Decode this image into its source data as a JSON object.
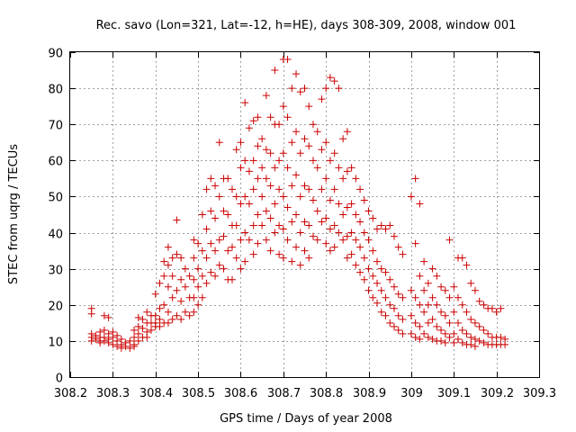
{
  "chart_data": {
    "type": "scatter",
    "title": "Rec. savo (Lon=321, Lat=-12, h=HE), days 308-309, 2008, window 001",
    "xlabel": "GPS time / Days of year 2008",
    "ylabel": "STEC from uqrg / TECUs",
    "xlim": [
      308.2,
      309.3
    ],
    "ylim": [
      0,
      90
    ],
    "xticks": [
      "308.2",
      "308.3",
      "308.4",
      "308.5",
      "308.6",
      "308.7",
      "308.8",
      "308.9",
      "309",
      "309.1",
      "309.2",
      "309.3"
    ],
    "yticks": [
      "0",
      "10",
      "20",
      "30",
      "40",
      "50",
      "60",
      "70",
      "80",
      "90"
    ],
    "grid": true,
    "marker": "plus",
    "color": "#cc0000",
    "points": [
      [
        308.25,
        19
      ],
      [
        308.25,
        17.5
      ],
      [
        308.25,
        12
      ],
      [
        308.25,
        11
      ],
      [
        308.25,
        10
      ],
      [
        308.26,
        11.5
      ],
      [
        308.26,
        10.5
      ],
      [
        308.27,
        12.5
      ],
      [
        308.27,
        11
      ],
      [
        308.27,
        10
      ],
      [
        308.27,
        9.5
      ],
      [
        308.28,
        17
      ],
      [
        308.28,
        13
      ],
      [
        308.28,
        11
      ],
      [
        308.28,
        10
      ],
      [
        308.29,
        16.5
      ],
      [
        308.29,
        12
      ],
      [
        308.29,
        10.5
      ],
      [
        308.29,
        9.5
      ],
      [
        308.3,
        12.5
      ],
      [
        308.3,
        11
      ],
      [
        308.3,
        9
      ],
      [
        308.31,
        11.5
      ],
      [
        308.31,
        10
      ],
      [
        308.31,
        8.5
      ],
      [
        308.32,
        10.5
      ],
      [
        308.32,
        9
      ],
      [
        308.32,
        8
      ],
      [
        308.33,
        9.5
      ],
      [
        308.33,
        8.5
      ],
      [
        308.34,
        10
      ],
      [
        308.34,
        8
      ],
      [
        308.35,
        13
      ],
      [
        308.35,
        11
      ],
      [
        308.35,
        9
      ],
      [
        308.35,
        8.5
      ],
      [
        308.36,
        16.5
      ],
      [
        308.36,
        14
      ],
      [
        308.36,
        12
      ],
      [
        308.36,
        10
      ],
      [
        308.37,
        16
      ],
      [
        308.37,
        13.5
      ],
      [
        308.37,
        11
      ],
      [
        308.38,
        18
      ],
      [
        308.38,
        15
      ],
      [
        308.38,
        12.5
      ],
      [
        308.38,
        11
      ],
      [
        308.39,
        17
      ],
      [
        308.39,
        15
      ],
      [
        308.39,
        13
      ],
      [
        308.4,
        23
      ],
      [
        308.4,
        17
      ],
      [
        308.4,
        15
      ],
      [
        308.4,
        14
      ],
      [
        308.41,
        26
      ],
      [
        308.41,
        19
      ],
      [
        308.41,
        16
      ],
      [
        308.41,
        14
      ],
      [
        308.42,
        32
      ],
      [
        308.42,
        28
      ],
      [
        308.42,
        20
      ],
      [
        308.42,
        15
      ],
      [
        308.43,
        36
      ],
      [
        308.43,
        31
      ],
      [
        308.43,
        25
      ],
      [
        308.43,
        18
      ],
      [
        308.43,
        15
      ],
      [
        308.44,
        33
      ],
      [
        308.44,
        28
      ],
      [
        308.44,
        22
      ],
      [
        308.44,
        16
      ],
      [
        308.45,
        43.5
      ],
      [
        308.45,
        34
      ],
      [
        308.45,
        24
      ],
      [
        308.45,
        17
      ],
      [
        308.46,
        33
      ],
      [
        308.46,
        27
      ],
      [
        308.46,
        21
      ],
      [
        308.46,
        16
      ],
      [
        308.47,
        30
      ],
      [
        308.47,
        25
      ],
      [
        308.47,
        18
      ],
      [
        308.48,
        28
      ],
      [
        308.48,
        22
      ],
      [
        308.48,
        17
      ],
      [
        308.49,
        38
      ],
      [
        308.49,
        33
      ],
      [
        308.49,
        27
      ],
      [
        308.49,
        22
      ],
      [
        308.49,
        18
      ],
      [
        308.5,
        37
      ],
      [
        308.5,
        30
      ],
      [
        308.5,
        25
      ],
      [
        308.5,
        20
      ],
      [
        308.51,
        45
      ],
      [
        308.51,
        35
      ],
      [
        308.51,
        28
      ],
      [
        308.51,
        22
      ],
      [
        308.52,
        52
      ],
      [
        308.52,
        41
      ],
      [
        308.52,
        33
      ],
      [
        308.52,
        26
      ],
      [
        308.53,
        55
      ],
      [
        308.53,
        46
      ],
      [
        308.53,
        37
      ],
      [
        308.53,
        29
      ],
      [
        308.54,
        53
      ],
      [
        308.54,
        44
      ],
      [
        308.54,
        35
      ],
      [
        308.54,
        28
      ],
      [
        308.55,
        65
      ],
      [
        308.55,
        50
      ],
      [
        308.55,
        38
      ],
      [
        308.55,
        31
      ],
      [
        308.56,
        55
      ],
      [
        308.56,
        46
      ],
      [
        308.56,
        39
      ],
      [
        308.56,
        30
      ],
      [
        308.57,
        55
      ],
      [
        308.57,
        45
      ],
      [
        308.57,
        35
      ],
      [
        308.57,
        27
      ],
      [
        308.58,
        52
      ],
      [
        308.58,
        42
      ],
      [
        308.58,
        36
      ],
      [
        308.58,
        27
      ],
      [
        308.59,
        63
      ],
      [
        308.59,
        50
      ],
      [
        308.59,
        42
      ],
      [
        308.59,
        33
      ],
      [
        308.6,
        65
      ],
      [
        308.6,
        58
      ],
      [
        308.6,
        48
      ],
      [
        308.6,
        38
      ],
      [
        308.6,
        30
      ],
      [
        308.61,
        76
      ],
      [
        308.61,
        60
      ],
      [
        308.61,
        50
      ],
      [
        308.61,
        40
      ],
      [
        308.61,
        32
      ],
      [
        308.62,
        69
      ],
      [
        308.62,
        57
      ],
      [
        308.62,
        48
      ],
      [
        308.62,
        38
      ],
      [
        308.63,
        71
      ],
      [
        308.63,
        60
      ],
      [
        308.63,
        52
      ],
      [
        308.63,
        42
      ],
      [
        308.63,
        34
      ],
      [
        308.64,
        72
      ],
      [
        308.64,
        64
      ],
      [
        308.64,
        55
      ],
      [
        308.64,
        45
      ],
      [
        308.64,
        37
      ],
      [
        308.65,
        66
      ],
      [
        308.65,
        58
      ],
      [
        308.65,
        50
      ],
      [
        308.65,
        42
      ],
      [
        308.66,
        78
      ],
      [
        308.66,
        63
      ],
      [
        308.66,
        55
      ],
      [
        308.66,
        46
      ],
      [
        308.66,
        38
      ],
      [
        308.67,
        72
      ],
      [
        308.67,
        62
      ],
      [
        308.67,
        53
      ],
      [
        308.67,
        44
      ],
      [
        308.67,
        35
      ],
      [
        308.68,
        85
      ],
      [
        308.68,
        70
      ],
      [
        308.68,
        58
      ],
      [
        308.68,
        48
      ],
      [
        308.68,
        40
      ],
      [
        308.69,
        70
      ],
      [
        308.69,
        60
      ],
      [
        308.69,
        52
      ],
      [
        308.69,
        42
      ],
      [
        308.69,
        34
      ],
      [
        308.7,
        88
      ],
      [
        308.7,
        75
      ],
      [
        308.7,
        62
      ],
      [
        308.7,
        50
      ],
      [
        308.7,
        41
      ],
      [
        308.7,
        33
      ],
      [
        308.71,
        88
      ],
      [
        308.71,
        72
      ],
      [
        308.71,
        58
      ],
      [
        308.71,
        47
      ],
      [
        308.71,
        38
      ],
      [
        308.72,
        80
      ],
      [
        308.72,
        65
      ],
      [
        308.72,
        53
      ],
      [
        308.72,
        43
      ],
      [
        308.72,
        32
      ],
      [
        308.73,
        84
      ],
      [
        308.73,
        68
      ],
      [
        308.73,
        56
      ],
      [
        308.73,
        45
      ],
      [
        308.73,
        36
      ],
      [
        308.74,
        79
      ],
      [
        308.74,
        62
      ],
      [
        308.74,
        50
      ],
      [
        308.74,
        40
      ],
      [
        308.74,
        31
      ],
      [
        308.75,
        80
      ],
      [
        308.75,
        66
      ],
      [
        308.75,
        53
      ],
      [
        308.75,
        43
      ],
      [
        308.75,
        35
      ],
      [
        308.76,
        75
      ],
      [
        308.76,
        64
      ],
      [
        308.76,
        52
      ],
      [
        308.76,
        42
      ],
      [
        308.76,
        33
      ],
      [
        308.77,
        70
      ],
      [
        308.77,
        60
      ],
      [
        308.77,
        49
      ],
      [
        308.77,
        39
      ],
      [
        308.78,
        68
      ],
      [
        308.78,
        58
      ],
      [
        308.78,
        46
      ],
      [
        308.78,
        38
      ],
      [
        308.79,
        77
      ],
      [
        308.79,
        63
      ],
      [
        308.79,
        52
      ],
      [
        308.79,
        43
      ],
      [
        308.8,
        80
      ],
      [
        308.8,
        65
      ],
      [
        308.8,
        55
      ],
      [
        308.8,
        44
      ],
      [
        308.8,
        37
      ],
      [
        308.81,
        83
      ],
      [
        308.81,
        60
      ],
      [
        308.81,
        49
      ],
      [
        308.81,
        41
      ],
      [
        308.81,
        35
      ],
      [
        308.82,
        82
      ],
      [
        308.82,
        62
      ],
      [
        308.82,
        52
      ],
      [
        308.82,
        42
      ],
      [
        308.82,
        36
      ],
      [
        308.83,
        80
      ],
      [
        308.83,
        58
      ],
      [
        308.83,
        48
      ],
      [
        308.83,
        40
      ],
      [
        308.84,
        66
      ],
      [
        308.84,
        55
      ],
      [
        308.84,
        45
      ],
      [
        308.84,
        38
      ],
      [
        308.85,
        68
      ],
      [
        308.85,
        57
      ],
      [
        308.85,
        47
      ],
      [
        308.85,
        39
      ],
      [
        308.85,
        33
      ],
      [
        308.86,
        58
      ],
      [
        308.86,
        48
      ],
      [
        308.86,
        40
      ],
      [
        308.86,
        34
      ],
      [
        308.87,
        55
      ],
      [
        308.87,
        45
      ],
      [
        308.87,
        38
      ],
      [
        308.87,
        31
      ],
      [
        308.88,
        52
      ],
      [
        308.88,
        43
      ],
      [
        308.88,
        36
      ],
      [
        308.88,
        29
      ],
      [
        308.89,
        49
      ],
      [
        308.89,
        40
      ],
      [
        308.89,
        33
      ],
      [
        308.89,
        27
      ],
      [
        308.9,
        46
      ],
      [
        308.9,
        38
      ],
      [
        308.9,
        30
      ],
      [
        308.9,
        24
      ],
      [
        308.91,
        44
      ],
      [
        308.91,
        35
      ],
      [
        308.91,
        28
      ],
      [
        308.91,
        22
      ],
      [
        308.92,
        41
      ],
      [
        308.92,
        32
      ],
      [
        308.92,
        26
      ],
      [
        308.92,
        20.5
      ],
      [
        308.93,
        42
      ],
      [
        308.93,
        30
      ],
      [
        308.93,
        24
      ],
      [
        308.93,
        18
      ],
      [
        308.94,
        41
      ],
      [
        308.94,
        29
      ],
      [
        308.94,
        22
      ],
      [
        308.94,
        17
      ],
      [
        308.95,
        42
      ],
      [
        308.95,
        27
      ],
      [
        308.95,
        20
      ],
      [
        308.95,
        15
      ],
      [
        308.96,
        39
      ],
      [
        308.96,
        25
      ],
      [
        308.96,
        19
      ],
      [
        308.96,
        14
      ],
      [
        308.97,
        36
      ],
      [
        308.97,
        23
      ],
      [
        308.97,
        17
      ],
      [
        308.97,
        13
      ],
      [
        308.98,
        34
      ],
      [
        308.98,
        22
      ],
      [
        308.98,
        16
      ],
      [
        308.98,
        12
      ],
      [
        309.0,
        50
      ],
      [
        309.0,
        24
      ],
      [
        309.0,
        17
      ],
      [
        309.0,
        12
      ],
      [
        309.01,
        55
      ],
      [
        309.01,
        37
      ],
      [
        309.01,
        22
      ],
      [
        309.01,
        15
      ],
      [
        309.01,
        11
      ],
      [
        309.02,
        48
      ],
      [
        309.02,
        28
      ],
      [
        309.02,
        20
      ],
      [
        309.02,
        14
      ],
      [
        309.02,
        10.5
      ],
      [
        309.03,
        32
      ],
      [
        309.03,
        24
      ],
      [
        309.03,
        18
      ],
      [
        309.03,
        12
      ],
      [
        309.04,
        26
      ],
      [
        309.04,
        20
      ],
      [
        309.04,
        15
      ],
      [
        309.04,
        11
      ],
      [
        309.05,
        30
      ],
      [
        309.05,
        22
      ],
      [
        309.05,
        16
      ],
      [
        309.05,
        10.5
      ],
      [
        309.06,
        28
      ],
      [
        309.06,
        20
      ],
      [
        309.06,
        14
      ],
      [
        309.06,
        10
      ],
      [
        309.07,
        25
      ],
      [
        309.07,
        18
      ],
      [
        309.07,
        13
      ],
      [
        309.07,
        10
      ],
      [
        309.08,
        24
      ],
      [
        309.08,
        17
      ],
      [
        309.08,
        12
      ],
      [
        309.08,
        9.5
      ],
      [
        309.09,
        38
      ],
      [
        309.09,
        22
      ],
      [
        309.09,
        15
      ],
      [
        309.09,
        11
      ],
      [
        309.1,
        25
      ],
      [
        309.1,
        18
      ],
      [
        309.1,
        12
      ],
      [
        309.1,
        9.5
      ],
      [
        309.11,
        33
      ],
      [
        309.11,
        22
      ],
      [
        309.11,
        15
      ],
      [
        309.11,
        10.5
      ],
      [
        309.12,
        33
      ],
      [
        309.12,
        20
      ],
      [
        309.12,
        13
      ],
      [
        309.12,
        9.5
      ],
      [
        309.13,
        31
      ],
      [
        309.13,
        18
      ],
      [
        309.13,
        12
      ],
      [
        309.13,
        9
      ],
      [
        309.14,
        26
      ],
      [
        309.14,
        16
      ],
      [
        309.14,
        11
      ],
      [
        309.14,
        9
      ],
      [
        309.15,
        24
      ],
      [
        309.15,
        15
      ],
      [
        309.15,
        10.5
      ],
      [
        309.15,
        8.5
      ],
      [
        309.16,
        21
      ],
      [
        309.16,
        14
      ],
      [
        309.16,
        10
      ],
      [
        309.17,
        20
      ],
      [
        309.17,
        13
      ],
      [
        309.17,
        9.5
      ],
      [
        309.18,
        19
      ],
      [
        309.18,
        12
      ],
      [
        309.18,
        9
      ],
      [
        309.19,
        19
      ],
      [
        309.19,
        11
      ],
      [
        309.19,
        9
      ],
      [
        309.2,
        18
      ],
      [
        309.2,
        11
      ],
      [
        309.2,
        9
      ],
      [
        309.21,
        19
      ],
      [
        309.21,
        11
      ],
      [
        309.21,
        9
      ],
      [
        309.22,
        10.5
      ],
      [
        309.22,
        9
      ]
    ]
  }
}
